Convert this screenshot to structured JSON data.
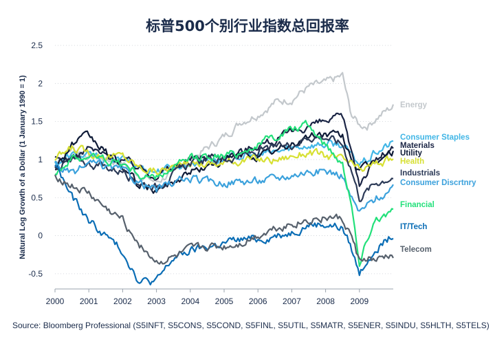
{
  "title": "标普500个别行业指数总回报率",
  "source": "Source: Bloomberg Professional (S5INFT, S5CONS, S5COND, S5FINL, S5UTIL, S5MATR, S5ENER, S5INDU, S5HLTH, S5TELS)",
  "chart_data": {
    "type": "line",
    "title": "标普500个别行业指数总回报率",
    "ylabel": "Natural Log Growth of a Dollar (1 January 1990 = 1)",
    "xlabel": "",
    "xlim": [
      2000,
      2010
    ],
    "ylim": [
      -0.7,
      2.5
    ],
    "x_ticks": [
      "2000",
      "2001",
      "2002",
      "2003",
      "2004",
      "2005",
      "2006",
      "2007",
      "2008",
      "2009"
    ],
    "y_ticks": [
      "2.5",
      "2",
      "1.5",
      "1",
      "0.5",
      "0",
      "-0.5"
    ],
    "grid": "horizontal dotted",
    "legend": "right, inline labels",
    "x": [
      2000,
      2000.5,
      2001,
      2001.5,
      2002,
      2002.5,
      2003,
      2003.5,
      2004,
      2004.5,
      2005,
      2005.5,
      2006,
      2006.5,
      2007,
      2007.5,
      2008,
      2008.5,
      2008.75,
      2009,
      2009.25,
      2009.5,
      2010
    ],
    "series": [
      {
        "name": "Energy",
        "color": "#c3c8cc",
        "values": [
          0.95,
          1.15,
          1.05,
          1.0,
          0.95,
          0.8,
          0.7,
          0.85,
          1.0,
          1.15,
          1.3,
          1.5,
          1.6,
          1.75,
          1.8,
          1.95,
          2.0,
          2.1,
          1.6,
          1.45,
          1.45,
          1.55,
          1.7
        ]
      },
      {
        "name": "Consumer Staples",
        "color": "#41b6e6",
        "values": [
          0.95,
          1.05,
          1.05,
          1.0,
          1.0,
          0.9,
          0.85,
          0.9,
          0.95,
          1.0,
          1.0,
          1.05,
          1.05,
          1.1,
          1.15,
          1.2,
          1.2,
          1.2,
          1.05,
          0.95,
          1.0,
          1.1,
          1.22
        ]
      },
      {
        "name": "Materials",
        "color": "#1b2545",
        "values": [
          1.0,
          1.0,
          1.15,
          1.05,
          1.0,
          0.9,
          0.8,
          0.9,
          1.0,
          1.05,
          1.05,
          1.1,
          1.2,
          1.25,
          1.35,
          1.45,
          1.5,
          1.55,
          1.15,
          0.7,
          0.85,
          1.0,
          1.15
        ]
      },
      {
        "name": "Utility",
        "color": "#0e1a36",
        "values": [
          0.9,
          1.2,
          1.3,
          1.1,
          0.9,
          0.65,
          0.6,
          0.7,
          0.85,
          0.9,
          1.0,
          1.05,
          1.05,
          1.1,
          1.2,
          1.3,
          1.35,
          1.3,
          1.05,
          0.85,
          0.9,
          1.0,
          1.1
        ]
      },
      {
        "name": "Health",
        "color": "#d7e033",
        "values": [
          1.0,
          1.15,
          1.1,
          1.05,
          1.05,
          0.9,
          0.85,
          0.9,
          0.95,
          0.95,
          0.95,
          1.0,
          1.0,
          1.0,
          1.05,
          1.1,
          1.05,
          1.0,
          0.95,
          0.85,
          0.9,
          0.95,
          1.0
        ]
      },
      {
        "name": "Industrials",
        "color": "#2c3a57",
        "values": [
          0.9,
          1.0,
          0.95,
          0.9,
          0.85,
          0.7,
          0.65,
          0.8,
          0.95,
          1.0,
          1.0,
          1.05,
          1.1,
          1.15,
          1.2,
          1.3,
          1.3,
          1.2,
          0.9,
          0.5,
          0.6,
          0.7,
          0.78
        ]
      },
      {
        "name": "Consumer Discrtnry",
        "color": "#3ba1dc",
        "values": [
          0.95,
          0.8,
          0.95,
          0.9,
          0.85,
          0.7,
          0.6,
          0.7,
          0.75,
          0.7,
          0.7,
          0.72,
          0.72,
          0.75,
          0.8,
          0.85,
          0.85,
          0.8,
          0.5,
          0.3,
          0.4,
          0.5,
          0.6
        ]
      },
      {
        "name": "Financial",
        "color": "#22e07a",
        "values": [
          0.85,
          1.0,
          1.05,
          1.0,
          0.95,
          0.8,
          0.75,
          0.9,
          1.0,
          1.05,
          1.05,
          1.1,
          1.2,
          1.3,
          1.4,
          1.45,
          1.2,
          0.95,
          0.5,
          -0.4,
          0.0,
          0.25,
          0.3
        ]
      },
      {
        "name": "IT/Tech",
        "color": "#0a6db5",
        "values": [
          0.95,
          0.5,
          0.2,
          0.0,
          -0.2,
          -0.6,
          -0.6,
          -0.3,
          -0.2,
          -0.15,
          -0.1,
          -0.05,
          -0.05,
          0.0,
          0.05,
          0.15,
          0.15,
          0.1,
          -0.15,
          -0.5,
          -0.3,
          -0.15,
          0.0
        ]
      },
      {
        "name": "Telecom",
        "color": "#56606c",
        "values": [
          0.8,
          0.65,
          0.55,
          0.35,
          0.2,
          -0.1,
          -0.35,
          -0.3,
          -0.2,
          -0.15,
          -0.15,
          -0.1,
          0.0,
          0.1,
          0.15,
          0.2,
          0.25,
          0.2,
          0.0,
          -0.35,
          -0.3,
          -0.35,
          -0.25
        ]
      }
    ]
  },
  "labels": [
    {
      "text": "Energy",
      "color": "#c3c8cc"
    },
    {
      "text": "Consumer Staples",
      "color": "#41b6e6"
    },
    {
      "text": "Materials",
      "color": "#1b2545"
    },
    {
      "text": "Utility",
      "color": "#0e1a36"
    },
    {
      "text": "Health",
      "color": "#d7e033"
    },
    {
      "text": "Industrials",
      "color": "#2c3a57"
    },
    {
      "text": "Consumer Discrtnry",
      "color": "#3ba1dc"
    },
    {
      "text": "Financial",
      "color": "#22e07a"
    },
    {
      "text": "IT/Tech",
      "color": "#0a6db5"
    },
    {
      "text": "Telecom",
      "color": "#56606c"
    }
  ]
}
